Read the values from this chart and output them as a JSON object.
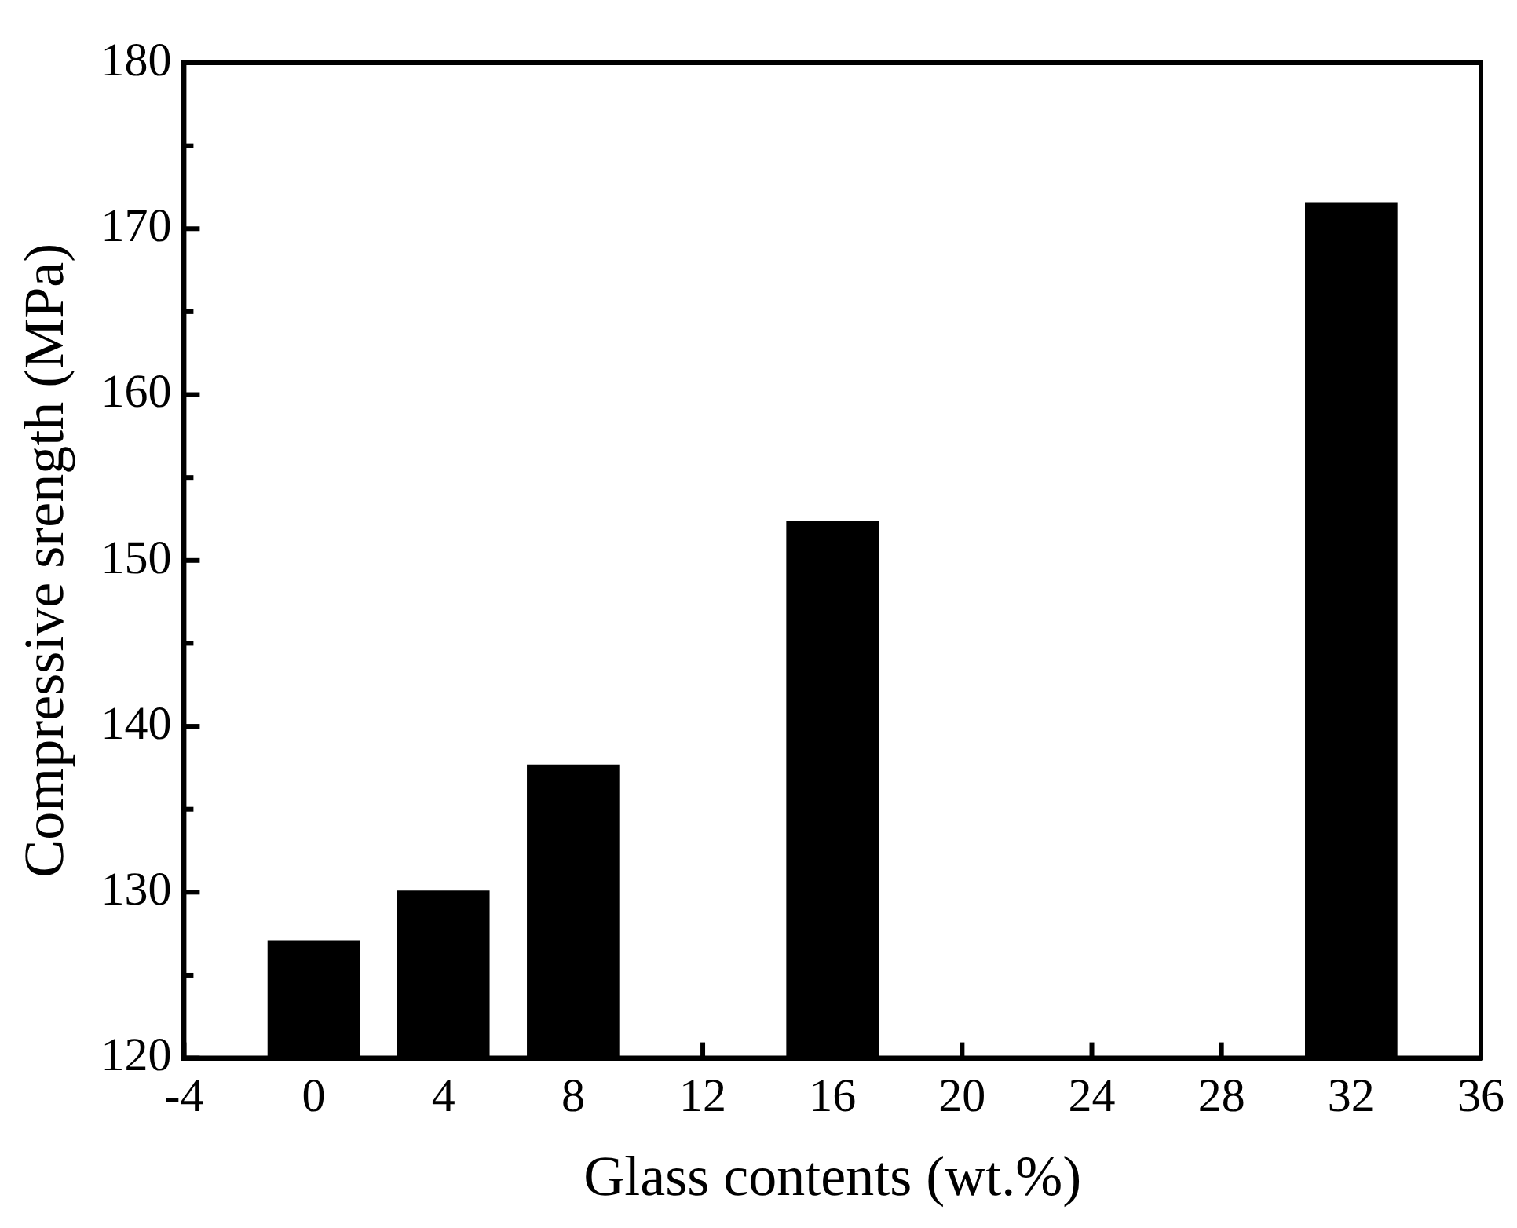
{
  "chart_data": {
    "type": "bar",
    "xlabel": "Glass contents (wt.%)",
    "ylabel": "Compressive srength (MPa)",
    "x": [
      0,
      4,
      8,
      16,
      32
    ],
    "values": [
      127.1,
      130.1,
      137.7,
      152.4,
      171.6
    ],
    "color": "#000000",
    "xlim": [
      -4,
      36
    ],
    "xticks": [
      -4,
      0,
      4,
      8,
      12,
      16,
      20,
      24,
      28,
      32,
      36
    ],
    "ylim": [
      120,
      180
    ],
    "yticks": [
      120,
      {
        "value": 125,
        "label": null
      },
      130,
      {
        "value": 135,
        "label": null
      },
      140,
      {
        "value": 145,
        "label": null
      },
      150,
      {
        "value": 155,
        "label": null
      },
      160,
      {
        "value": 165,
        "label": null
      },
      170,
      {
        "value": 175,
        "label": null
      },
      180
    ],
    "grid": false,
    "legend": false
  }
}
